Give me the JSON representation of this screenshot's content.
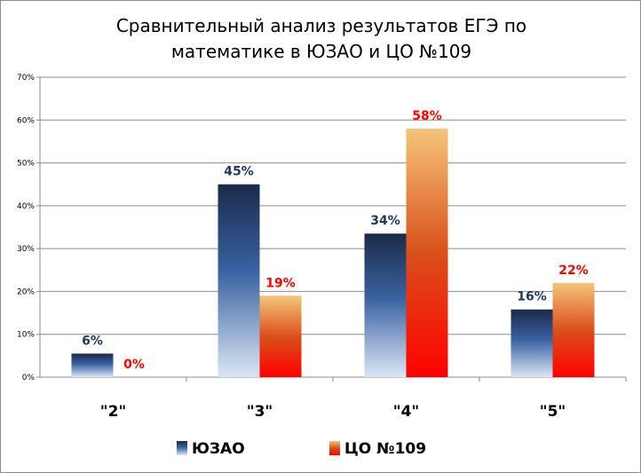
{
  "chart_data": {
    "type": "bar",
    "title_lines": [
      "Сравнительный анализ результатов ЕГЭ по",
      "математике в ЮЗАО и ЦО №109"
    ],
    "categories": [
      "\"2\"",
      "\"3\"",
      "\"4\"",
      "\"5\""
    ],
    "series": [
      {
        "name": "ЮЗАО",
        "values": [
          5.5,
          45,
          33.5,
          15.8
        ],
        "labels": [
          "6%",
          "45%",
          "34%",
          "16%"
        ],
        "label_color": "#1f3864"
      },
      {
        "name": "ЦО №109",
        "values": [
          0,
          19,
          58,
          22
        ],
        "labels": [
          "0%",
          "19%",
          "58%",
          "22%"
        ],
        "label_color": "#ff0000"
      }
    ],
    "ylim": [
      0,
      70
    ],
    "yticks": [
      0,
      10,
      20,
      30,
      40,
      50,
      60,
      70
    ],
    "ytick_labels": [
      "0%",
      "10%",
      "20%",
      "30%",
      "40%",
      "50%",
      "60%",
      "70%"
    ],
    "grid": true,
    "legend_position": "bottom",
    "xlabel": "",
    "ylabel": ""
  }
}
